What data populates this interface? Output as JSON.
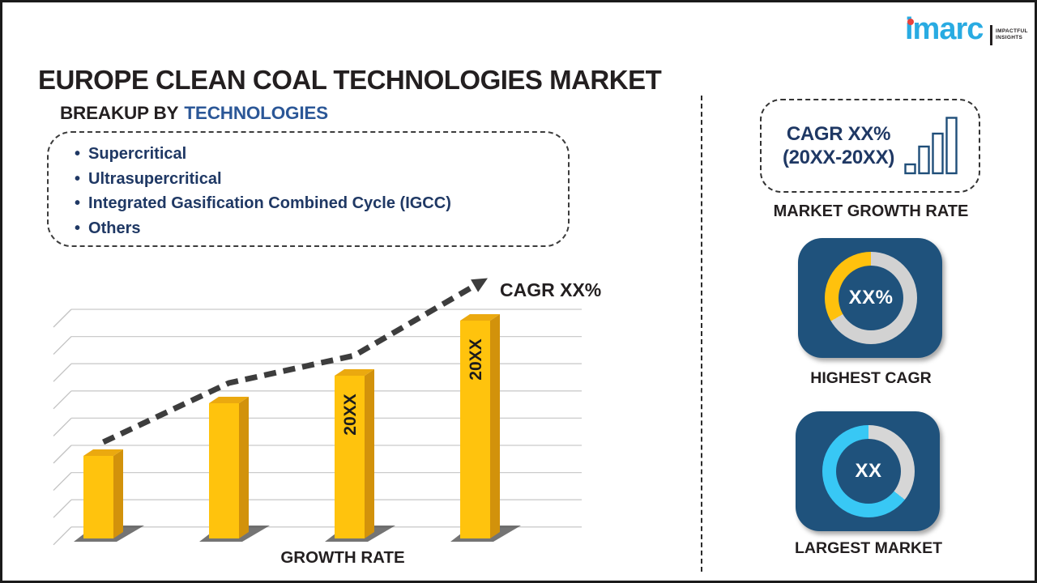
{
  "header": {
    "title": "EUROPE CLEAN COAL TECHNOLOGIES MARKET"
  },
  "logo": {
    "brand": "imarc",
    "tagline_line1": "IMPACTFUL",
    "tagline_line2": "INSIGHTS",
    "brand_color": "#29ABE2",
    "dot_color": "#E8423D"
  },
  "breakup": {
    "heading_prefix": "BREAKUP BY",
    "heading_highlight": "TECHNOLOGIES",
    "items": [
      "Supercritical",
      "Ultrasupercritical",
      "Integrated Gasification Combined Cycle (IGCC)",
      "Others"
    ]
  },
  "chart_data": {
    "type": "bar",
    "title": "",
    "xlabel": "GROWTH RATE",
    "ylabel": "",
    "categories": [
      "",
      "",
      "20XX",
      "20XX"
    ],
    "values_relative_pct": [
      36,
      59,
      71,
      95
    ],
    "axis_numeric_labels_shown": false,
    "grid": true,
    "bar_color": "#FFC30D",
    "trend": {
      "label": "CAGR XX%",
      "style": "dashed-arrow",
      "color": "#3D3D3D"
    }
  },
  "right_panel": {
    "growth_box": {
      "line1": "CAGR XX%",
      "line2": "(20XX-20XX)",
      "icon": "bar-chart-icon",
      "text_color": "#1F3864"
    },
    "growth_caption": "MARKET GROWTH RATE",
    "highest_cagr": {
      "center_value": "XX%",
      "caption": "HIGHEST CAGR",
      "tile_color": "#1F527C",
      "segments": [
        {
          "color": "#D2D2D2",
          "from_deg": 0,
          "to_deg": 240
        },
        {
          "color": "#FFC10D",
          "from_deg": 240,
          "to_deg": 360
        }
      ]
    },
    "largest_market": {
      "center_value": "XX",
      "caption": "LARGEST MARKET",
      "tile_color": "#1F527C",
      "segments": [
        {
          "color": "#D6D6D6",
          "from_deg": 0,
          "to_deg": 128
        },
        {
          "color": "#38C8F5",
          "from_deg": 128,
          "to_deg": 360
        }
      ]
    }
  }
}
